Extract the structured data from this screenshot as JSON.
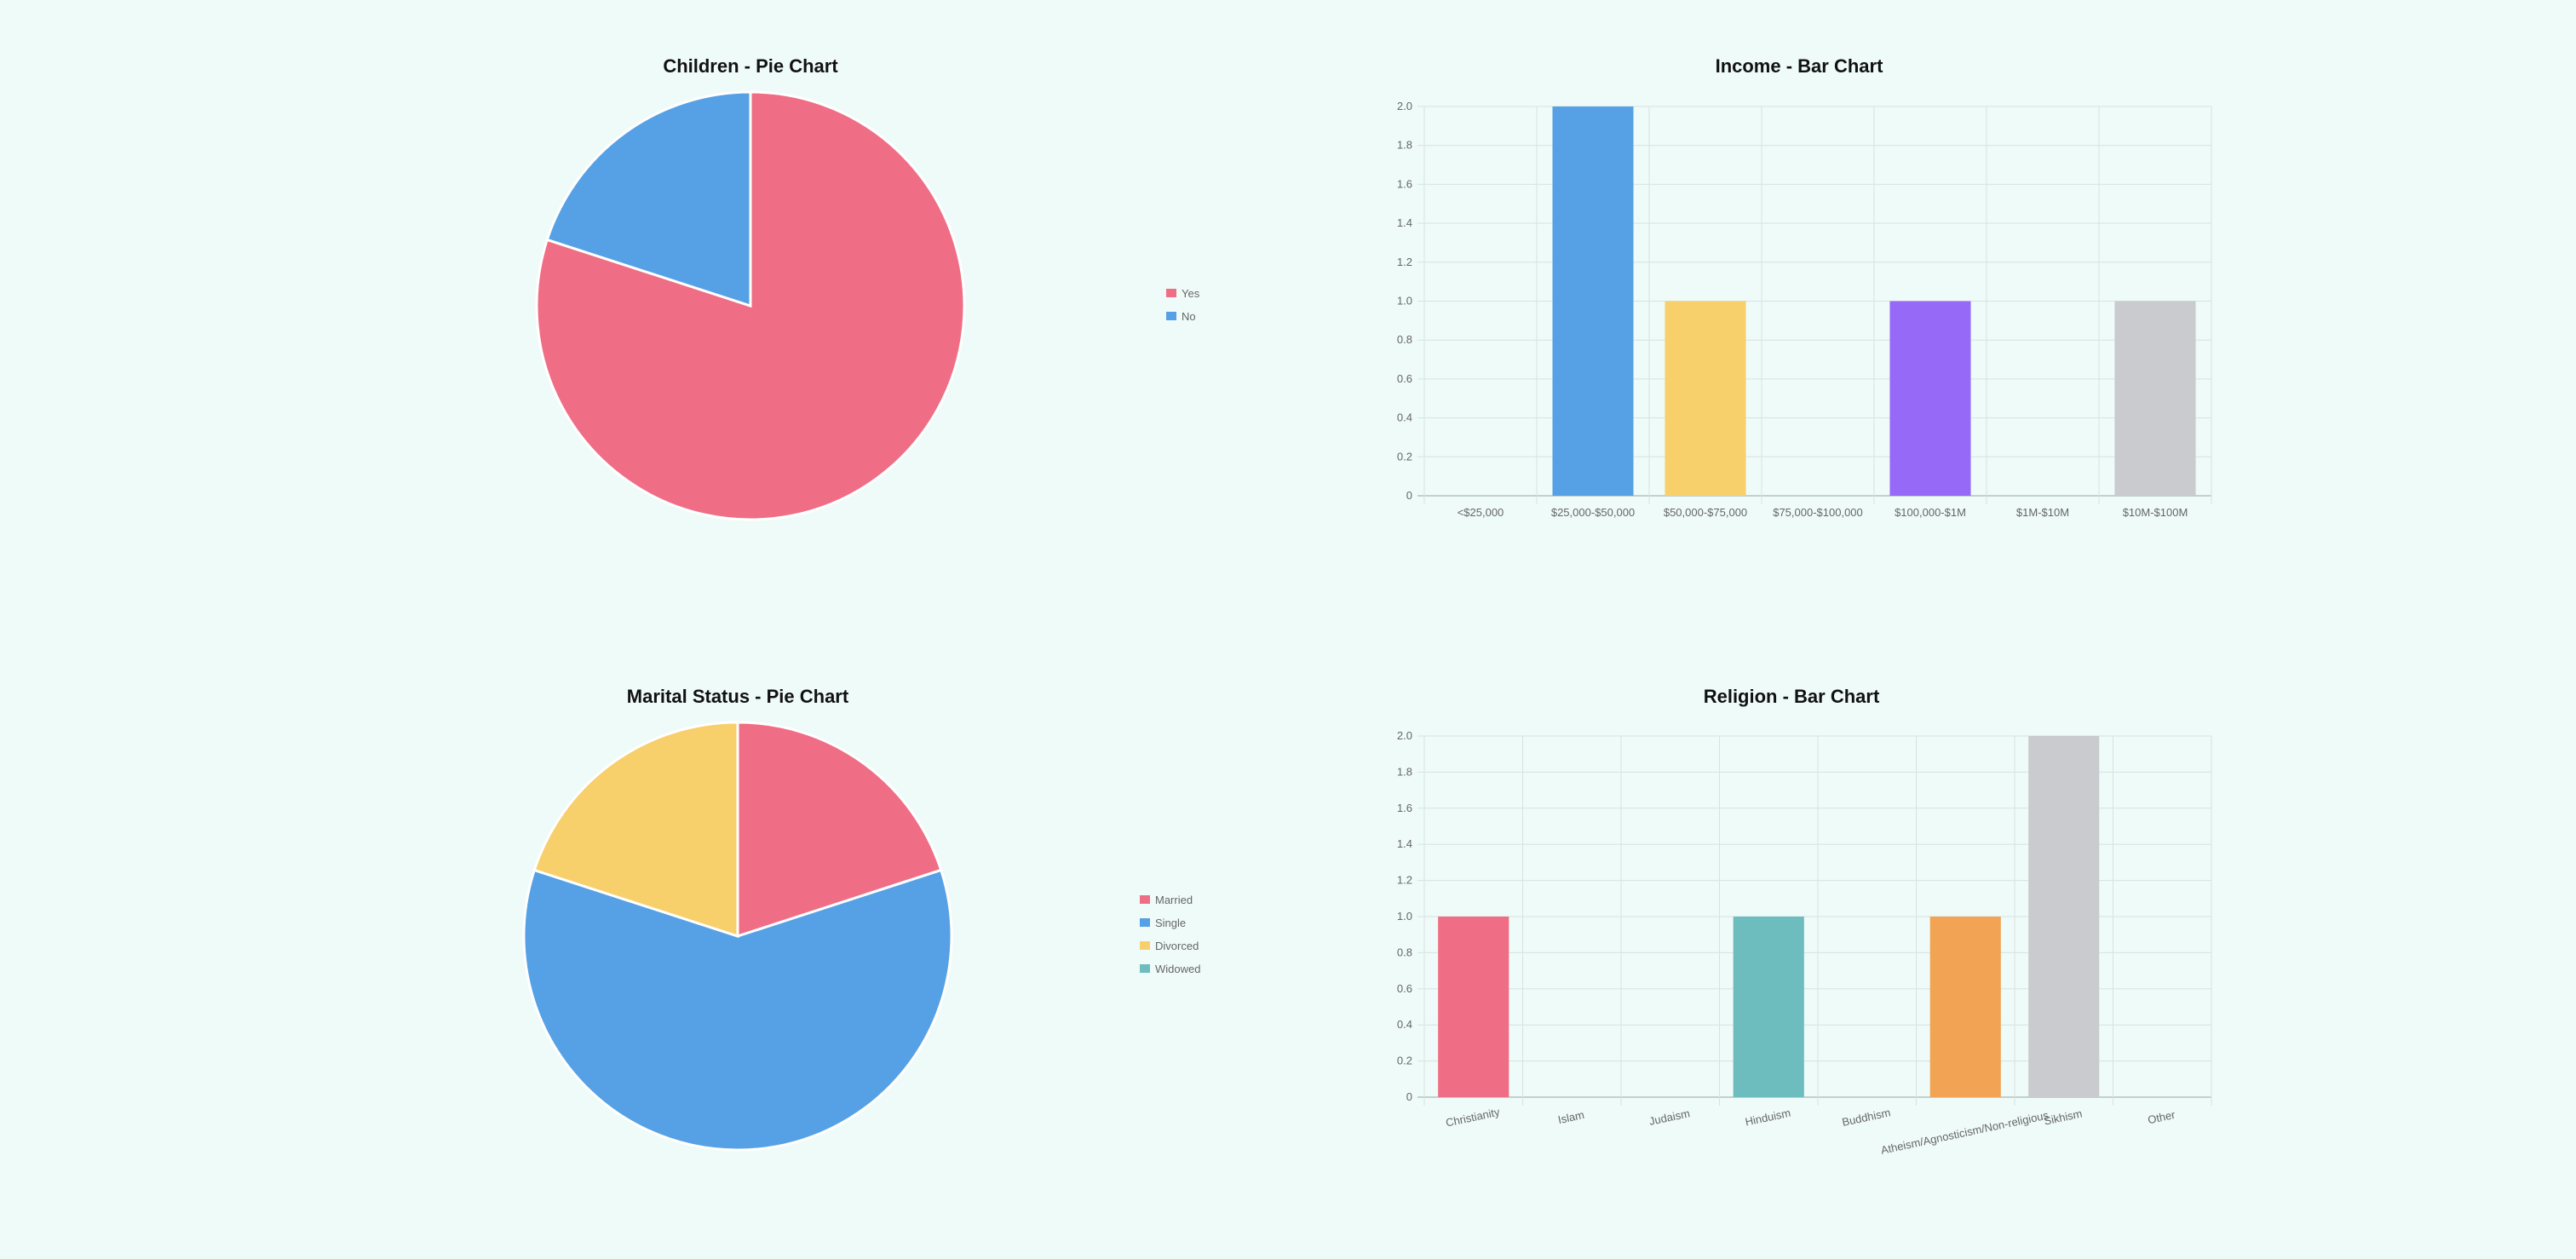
{
  "palette": [
    "#ef6e85",
    "#56a1e5",
    "#f7d06c",
    "#6dbdbf",
    "#9669f7",
    "#f2a454",
    "#c9cbcf"
  ],
  "chart_data": [
    {
      "id": "children",
      "type": "pie",
      "title": "Children - Pie Chart",
      "labels": [
        "Yes",
        "No"
      ],
      "values": [
        4,
        1
      ],
      "colors": [
        "#ef6e85",
        "#56a1e5"
      ],
      "legend": "right"
    },
    {
      "id": "income",
      "type": "bar",
      "title": "Income - Bar Chart",
      "categories": [
        "<$25,000",
        "$25,000-$50,000",
        "$50,000-$75,000",
        "$75,000-$100,000",
        "$100,000-$1M",
        "$1M-$10M",
        "$10M-$100M"
      ],
      "values": [
        0,
        2,
        1,
        0,
        1,
        0,
        1
      ],
      "colors": [
        "#ef6e85",
        "#56a1e5",
        "#f7d06c",
        "#6dbdbf",
        "#9669f7",
        "#f2a454",
        "#c9cbcf"
      ],
      "ylim": [
        0,
        2
      ],
      "yticks": [
        "0",
        "0.2",
        "0.4",
        "0.6",
        "0.8",
        "1.0",
        "1.2",
        "1.4",
        "1.6",
        "1.8",
        "2.0"
      ],
      "grid": true
    },
    {
      "id": "marital",
      "type": "pie",
      "title": "Marital Status - Pie Chart",
      "labels": [
        "Married",
        "Single",
        "Divorced",
        "Widowed"
      ],
      "values": [
        1,
        3,
        1,
        0
      ],
      "colors": [
        "#ef6e85",
        "#56a1e5",
        "#f7d06c",
        "#6dbdbf"
      ],
      "legend": "right"
    },
    {
      "id": "religion",
      "type": "bar",
      "title": "Religion - Bar Chart",
      "categories": [
        "Christianity",
        "Islam",
        "Judaism",
        "Hinduism",
        "Buddhism",
        "Atheism/Agnosticism/Non-religious",
        "Sikhism",
        "Other"
      ],
      "values": [
        1,
        0,
        0,
        1,
        0,
        1,
        2,
        0
      ],
      "colors": [
        "#ef6e85",
        "#56a1e5",
        "#f7d06c",
        "#6dbdbf",
        "#9669f7",
        "#f2a454",
        "#c9cbcf",
        "#ef6e85"
      ],
      "ylim": [
        0,
        2
      ],
      "yticks": [
        "0",
        "0.2",
        "0.4",
        "0.6",
        "0.8",
        "1.0",
        "1.2",
        "1.4",
        "1.6",
        "1.8",
        "2.0"
      ],
      "grid": true
    }
  ]
}
